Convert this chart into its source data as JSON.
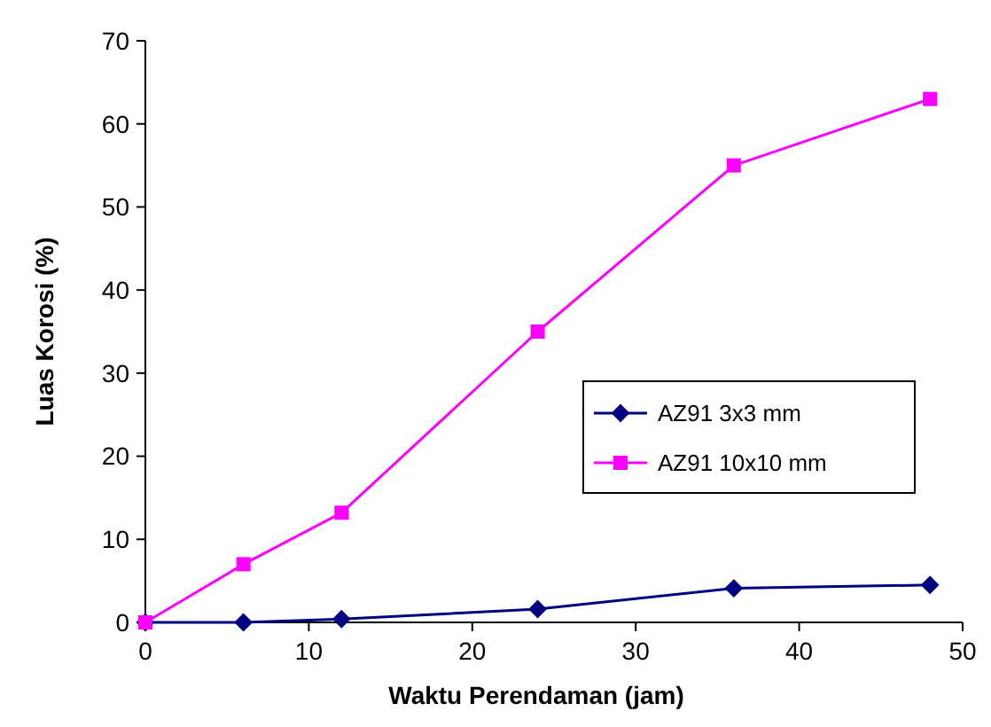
{
  "chart_data": {
    "type": "line",
    "xlabel": "Waktu Perendaman (jam)",
    "ylabel": "Luas Korosi (%)",
    "x": [
      0,
      6,
      12,
      24,
      36,
      48
    ],
    "series": [
      {
        "name": "AZ91 3x3 mm",
        "color": "#000080",
        "values": [
          0,
          0,
          0.4,
          1.6,
          4.1,
          4.5
        ],
        "marker": "diamond"
      },
      {
        "name": "AZ91 10x10 mm",
        "color": "#ff00ff",
        "values": [
          0,
          7,
          13.2,
          35,
          55,
          63
        ],
        "marker": "square"
      }
    ],
    "xlim": [
      0,
      50
    ],
    "xticks": [
      0,
      10,
      20,
      30,
      40,
      50
    ],
    "ylim": [
      0,
      70
    ],
    "yticks": [
      0,
      10,
      20,
      30,
      40,
      50,
      60,
      70
    ],
    "grid": false,
    "legend": "right",
    "line_style": "solid"
  }
}
